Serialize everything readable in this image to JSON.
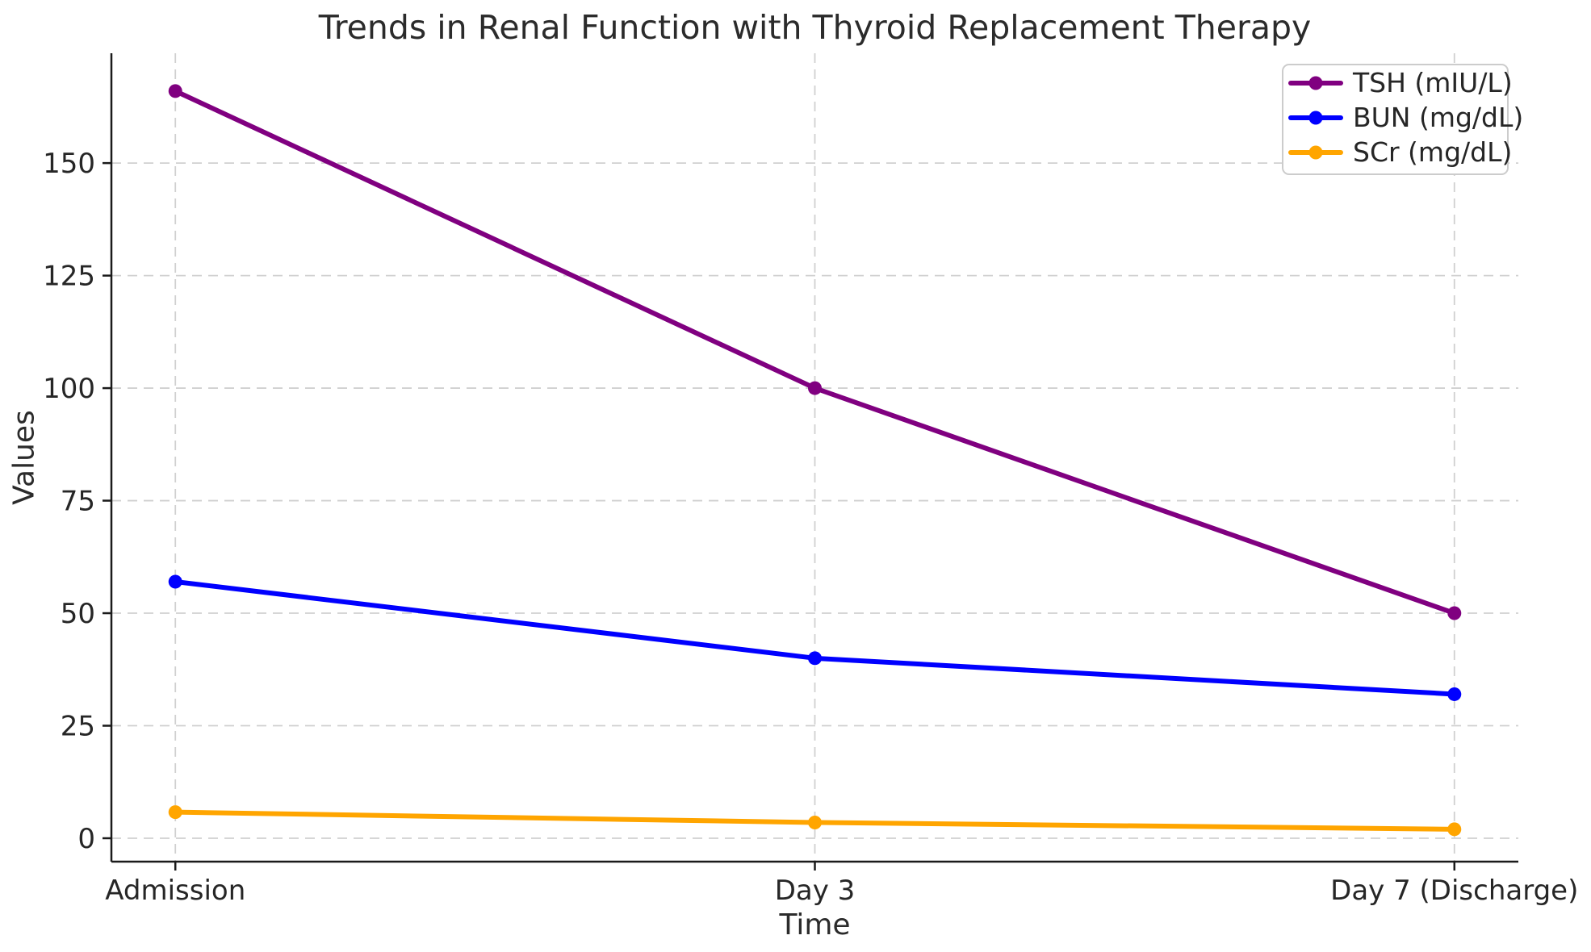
{
  "chart_data": {
    "type": "line",
    "title": "Trends in Renal Function with Thyroid Replacement Therapy",
    "xlabel": "Time",
    "ylabel": "Values",
    "categories": [
      "Admission",
      "Day 3",
      "Day 7 (Discharge)"
    ],
    "series": [
      {
        "name": "TSH (mIU/L)",
        "color": "#800080",
        "values": [
          166,
          100,
          50
        ]
      },
      {
        "name": "BUN (mg/dL)",
        "color": "#0000ff",
        "values": [
          57,
          40,
          32
        ]
      },
      {
        "name": "SCr (mg/dL)",
        "color": "#ffa500",
        "values": [
          5.8,
          3.5,
          2.0
        ]
      }
    ],
    "yticks": [
      0,
      25,
      50,
      75,
      100,
      125,
      150
    ],
    "ylim": [
      -5.2,
      174.4
    ],
    "grid": true,
    "grid_style": "dashed",
    "legend_position": "upper right",
    "colors": {
      "grid": "#d0d0d0",
      "spine": "#1a1a1a",
      "text": "#262626",
      "legend_border": "#cccccc",
      "background": "#ffffff"
    }
  }
}
